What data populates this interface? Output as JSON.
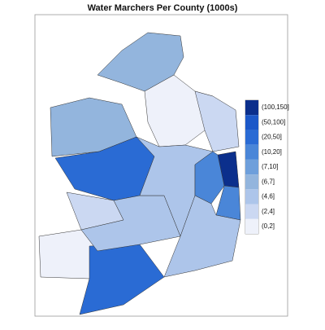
{
  "chart_data": {
    "type": "choropleth",
    "title": "Water Marchers Per County (1000s)",
    "legend": {
      "labels": [
        "(100,150]",
        "(50,100]",
        "(20,50]",
        "(10,20]",
        "(7,10]",
        "(6,7]",
        "(4,6]",
        "(2,4]",
        "(0,2]"
      ],
      "colors": [
        "#0b2f8c",
        "#1c58c8",
        "#2a6bd4",
        "#4a86d8",
        "#6e9fdb",
        "#93b5dd",
        "#adc5ea",
        "#cbd8f2",
        "#eef1fa"
      ]
    },
    "region_bins": [
      5,
      8,
      7,
      5,
      2,
      7,
      8,
      2,
      6,
      6,
      0,
      3,
      3,
      6
    ]
  }
}
